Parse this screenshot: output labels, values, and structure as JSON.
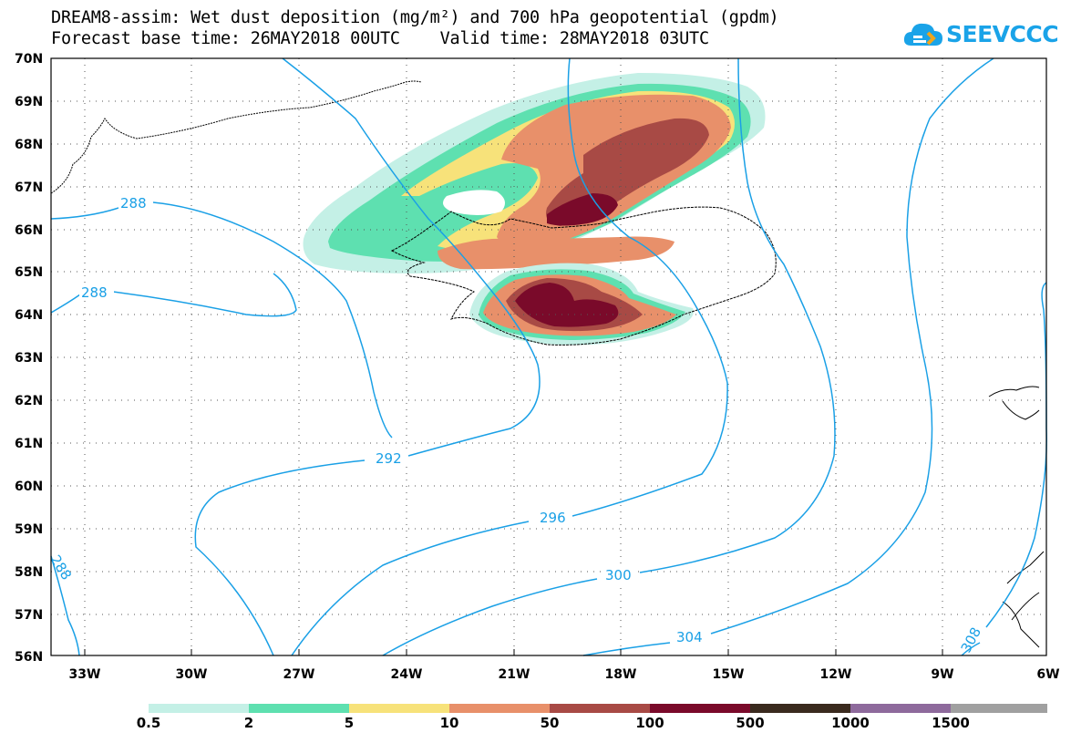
{
  "header": {
    "title_line1": "DREAM8-assim: Wet dust deposition (mg/m²) and 700 hPa geopotential (gpdm)",
    "title_line2": "Forecast base time: 26MAY2018 00UTC    Valid time: 28MAY2018 03UTC"
  },
  "logo": {
    "text": "SEEVCCC",
    "icon": "cloud-icon",
    "color": "#1aa3e8"
  },
  "map": {
    "lat_labels": [
      "70N",
      "69N",
      "68N",
      "67N",
      "66N",
      "65N",
      "64N",
      "63N",
      "62N",
      "61N",
      "60N",
      "59N",
      "58N",
      "57N",
      "56N"
    ],
    "lon_labels": [
      "33W",
      "30W",
      "27W",
      "24W",
      "21W",
      "18W",
      "15W",
      "12W",
      "9W",
      "6W"
    ],
    "contour_labels": [
      "288",
      "288",
      "292",
      "296",
      "300",
      "304",
      "308",
      "288"
    ],
    "contour_color": "#1aa0e6"
  },
  "legend": {
    "colors": [
      "#c4f0e6",
      "#5ee0b0",
      "#f7e27a",
      "#e8906a",
      "#a84a45",
      "#7a0a2a",
      "#3a2a1e",
      "#8e6a9c",
      "#a0a0a0"
    ],
    "labels": [
      "0.5",
      "2",
      "5",
      "10",
      "50",
      "100",
      "500",
      "1000",
      "1500"
    ]
  }
}
